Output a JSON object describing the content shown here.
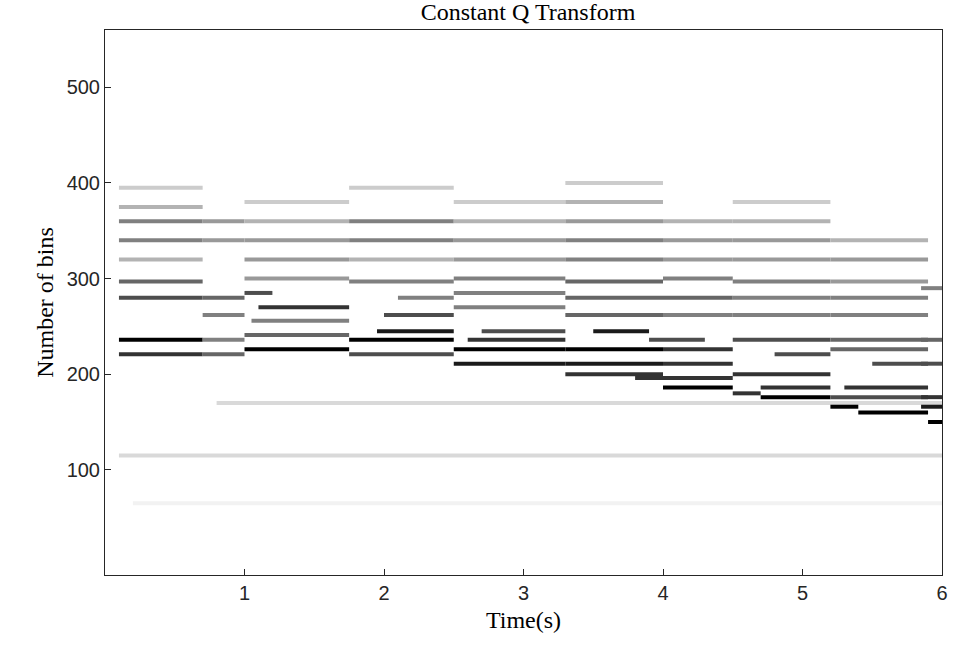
{
  "chart_data": {
    "type": "heatmap",
    "title": "Constant Q Transform",
    "x_label": "Time(s)",
    "y_label": "Number of bins",
    "xlim": [
      0,
      6
    ],
    "xticks": [
      1,
      2,
      3,
      4,
      5,
      6
    ],
    "ylim": [
      -10,
      560
    ],
    "yticks": [
      100,
      200,
      300,
      400,
      500
    ],
    "zlim": [
      0,
      1
    ],
    "color": "#000000",
    "cells": [
      [
        0.2,
        6.0,
        65,
        0.05
      ],
      [
        0.1,
        6.0,
        115,
        0.15
      ],
      [
        0.8,
        6.0,
        170,
        0.15
      ],
      [
        0.1,
        0.7,
        236,
        1
      ],
      [
        0.1,
        0.7,
        221,
        0.8
      ],
      [
        0.1,
        0.7,
        280,
        0.7
      ],
      [
        0.1,
        0.7,
        297,
        0.6
      ],
      [
        0.1,
        0.7,
        340,
        0.5
      ],
      [
        0.1,
        0.7,
        360,
        0.5
      ],
      [
        0.1,
        0.7,
        320,
        0.3
      ],
      [
        0.1,
        0.7,
        375,
        0.3
      ],
      [
        0.1,
        0.7,
        395,
        0.2
      ],
      [
        0.7,
        1.0,
        221,
        0.6
      ],
      [
        0.7,
        1.0,
        236,
        0.5
      ],
      [
        0.7,
        1.0,
        262,
        0.5
      ],
      [
        0.7,
        1.0,
        280,
        0.6
      ],
      [
        0.7,
        1.0,
        340,
        0.4
      ],
      [
        0.7,
        1.0,
        360,
        0.4
      ],
      [
        1.0,
        1.75,
        226,
        1
      ],
      [
        1.0,
        1.75,
        241,
        0.6
      ],
      [
        1.0,
        1.2,
        285,
        0.7
      ],
      [
        1.1,
        1.75,
        270,
        0.8
      ],
      [
        1.05,
        1.75,
        256,
        0.5
      ],
      [
        1.0,
        1.75,
        300,
        0.4
      ],
      [
        1.0,
        1.75,
        320,
        0.4
      ],
      [
        1.0,
        1.75,
        340,
        0.4
      ],
      [
        1.0,
        1.75,
        360,
        0.3
      ],
      [
        1.0,
        1.75,
        380,
        0.2
      ],
      [
        1.75,
        2.5,
        236,
        1
      ],
      [
        1.75,
        2.5,
        221,
        0.7
      ],
      [
        1.95,
        2.5,
        245,
        0.9
      ],
      [
        2.0,
        2.5,
        262,
        0.7
      ],
      [
        2.1,
        2.5,
        280,
        0.5
      ],
      [
        1.75,
        2.5,
        297,
        0.5
      ],
      [
        1.75,
        2.5,
        340,
        0.5
      ],
      [
        1.75,
        2.5,
        360,
        0.5
      ],
      [
        1.75,
        2.5,
        320,
        0.3
      ],
      [
        1.75,
        2.5,
        395,
        0.2
      ],
      [
        2.5,
        3.3,
        226,
        1
      ],
      [
        2.5,
        3.3,
        211,
        0.9
      ],
      [
        2.6,
        3.3,
        236,
        0.8
      ],
      [
        2.7,
        3.3,
        245,
        0.7
      ],
      [
        2.5,
        3.3,
        270,
        0.5
      ],
      [
        2.5,
        3.3,
        285,
        0.5
      ],
      [
        2.5,
        3.3,
        300,
        0.5
      ],
      [
        2.5,
        3.3,
        320,
        0.4
      ],
      [
        2.5,
        3.3,
        340,
        0.4
      ],
      [
        2.5,
        3.3,
        360,
        0.3
      ],
      [
        2.5,
        3.3,
        380,
        0.2
      ],
      [
        3.3,
        4.0,
        226,
        1
      ],
      [
        3.3,
        4.0,
        211,
        0.9
      ],
      [
        3.3,
        4.0,
        200,
        0.8
      ],
      [
        3.5,
        3.9,
        245,
        0.9
      ],
      [
        3.3,
        4.0,
        262,
        0.6
      ],
      [
        3.3,
        4.0,
        280,
        0.6
      ],
      [
        3.3,
        4.0,
        297,
        0.6
      ],
      [
        3.3,
        4.0,
        320,
        0.5
      ],
      [
        3.3,
        4.0,
        340,
        0.5
      ],
      [
        3.3,
        4.0,
        360,
        0.4
      ],
      [
        3.3,
        4.0,
        380,
        0.3
      ],
      [
        3.3,
        4.0,
        400,
        0.2
      ],
      [
        4.0,
        4.5,
        186,
        1
      ],
      [
        3.8,
        4.5,
        196,
        0.8
      ],
      [
        4.0,
        4.5,
        211,
        0.8
      ],
      [
        4.0,
        4.5,
        226,
        0.8
      ],
      [
        3.9,
        4.3,
        236,
        0.7
      ],
      [
        4.0,
        4.5,
        262,
        0.5
      ],
      [
        4.0,
        4.5,
        280,
        0.6
      ],
      [
        4.0,
        4.5,
        300,
        0.5
      ],
      [
        4.0,
        4.5,
        320,
        0.4
      ],
      [
        4.0,
        4.5,
        340,
        0.4
      ],
      [
        4.0,
        4.5,
        360,
        0.3
      ],
      [
        4.5,
        4.7,
        180,
        0.8
      ],
      [
        4.7,
        5.2,
        176,
        1
      ],
      [
        4.7,
        5.2,
        186,
        0.8
      ],
      [
        4.5,
        5.2,
        200,
        0.8
      ],
      [
        4.8,
        5.2,
        221,
        0.7
      ],
      [
        4.5,
        5.2,
        236,
        0.7
      ],
      [
        4.5,
        5.2,
        262,
        0.5
      ],
      [
        4.5,
        5.2,
        280,
        0.5
      ],
      [
        4.5,
        5.2,
        297,
        0.5
      ],
      [
        4.5,
        5.2,
        320,
        0.4
      ],
      [
        4.5,
        5.2,
        340,
        0.4
      ],
      [
        4.5,
        5.2,
        360,
        0.3
      ],
      [
        4.5,
        5.2,
        380,
        0.2
      ],
      [
        5.2,
        5.4,
        166,
        1
      ],
      [
        5.4,
        5.9,
        160,
        1
      ],
      [
        5.3,
        5.9,
        186,
        0.8
      ],
      [
        5.2,
        5.9,
        176,
        0.7
      ],
      [
        5.5,
        5.9,
        211,
        0.7
      ],
      [
        5.2,
        5.9,
        226,
        0.6
      ],
      [
        5.2,
        5.9,
        236,
        0.6
      ],
      [
        5.2,
        5.9,
        262,
        0.5
      ],
      [
        5.2,
        5.9,
        280,
        0.5
      ],
      [
        5.2,
        5.9,
        297,
        0.4
      ],
      [
        5.2,
        5.9,
        320,
        0.4
      ],
      [
        5.2,
        5.9,
        340,
        0.3
      ],
      [
        5.9,
        6.0,
        150,
        1
      ],
      [
        5.85,
        6.0,
        166,
        0.9
      ],
      [
        5.85,
        6.0,
        176,
        0.8
      ],
      [
        5.85,
        6.0,
        211,
        0.7
      ],
      [
        5.85,
        6.0,
        236,
        0.6
      ],
      [
        5.85,
        6.0,
        290,
        0.5
      ]
    ]
  }
}
